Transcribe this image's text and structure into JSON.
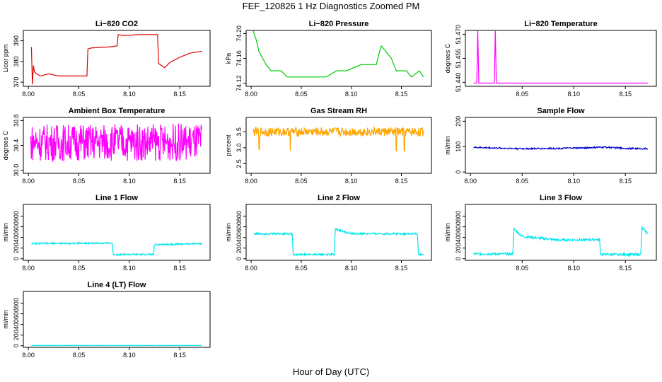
{
  "page_title": "FEF_120826  1 Hz Diagnostics Zoomed PM",
  "x_axis_label": "Hour of Day (UTC)",
  "chart_data": [
    {
      "type": "line",
      "title": "Li−820 CO2",
      "ylabel": "Licor ppm",
      "x_ticks": [
        "8.00",
        "8.05",
        "8.10",
        "8.15"
      ],
      "xlim": [
        7.995,
        8.18
      ],
      "y_ticks": [
        "370",
        "380",
        "390"
      ],
      "ylim": [
        368,
        395
      ],
      "color": "#e00000",
      "series": [
        {
          "x": [
            8.003,
            8.004,
            8.005,
            8.006,
            8.008,
            8.012,
            8.02,
            8.03,
            8.045,
            8.058,
            8.059,
            8.062,
            8.07,
            8.08,
            8.088,
            8.089,
            8.095,
            8.11,
            8.128,
            8.129,
            8.135,
            8.14,
            8.15,
            8.16,
            8.172
          ],
          "y": [
            387,
            369,
            378,
            375,
            374,
            373,
            374,
            373,
            373,
            373,
            386,
            386.5,
            386.8,
            387,
            387.5,
            393,
            392.5,
            393,
            393,
            379,
            377,
            379.5,
            382,
            384,
            385
          ]
        }
      ]
    },
    {
      "type": "line",
      "title": "Li−820 Pressure",
      "ylabel": "kPa",
      "x_ticks": [
        "8.00",
        "8.05",
        "8.10",
        "8.15"
      ],
      "xlim": [
        7.995,
        8.18
      ],
      "y_ticks": [
        "74.12",
        "74.16",
        "74.20"
      ],
      "ylim": [
        74.115,
        74.205
      ],
      "color": "#00cc00",
      "series": [
        {
          "x": [
            8.002,
            8.005,
            8.008,
            8.015,
            8.02,
            8.03,
            8.036,
            8.045,
            8.06,
            8.075,
            8.085,
            8.095,
            8.11,
            8.125,
            8.128,
            8.13,
            8.135,
            8.14,
            8.145,
            8.155,
            8.16,
            8.168,
            8.172
          ],
          "y": [
            74.205,
            74.19,
            74.17,
            74.15,
            74.14,
            74.14,
            74.13,
            74.13,
            74.13,
            74.13,
            74.14,
            74.14,
            74.15,
            74.15,
            74.17,
            74.18,
            74.17,
            74.16,
            74.14,
            74.14,
            74.13,
            74.14,
            74.13
          ]
        }
      ]
    },
    {
      "type": "line",
      "title": "Li−820 Temperature",
      "ylabel": "degrees C",
      "x_ticks": [
        "8.05",
        "8.10",
        "8.15"
      ],
      "xlim": [
        7.995,
        8.18
      ],
      "y_ticks": [
        "51.440",
        "51.455",
        "51.470"
      ],
      "ylim": [
        51.4375,
        51.4725
      ],
      "color": "#ff00ff",
      "series": [
        {
          "x": [
            8.003,
            8.006,
            8.007,
            8.008,
            8.02,
            8.023,
            8.024,
            8.025,
            8.172
          ],
          "y": [
            51.4395,
            51.4395,
            51.4725,
            51.4395,
            51.4395,
            51.4395,
            51.4725,
            51.4395,
            51.4395
          ]
        }
      ]
    },
    {
      "type": "line",
      "title": "Ambient Box Temperature",
      "ylabel": "degrees C",
      "x_ticks": [
        "8.00",
        "8.05",
        "8.10",
        "8.15"
      ],
      "xlim": [
        7.995,
        8.18
      ],
      "y_ticks": [
        "30.0",
        "30.4",
        "30.8"
      ],
      "ylim": [
        29.95,
        30.85
      ],
      "color": "#ff00ff",
      "series": [
        {
          "x": [
            8.002,
            8.172
          ],
          "y": [
            30.45,
            30.45
          ]
        }
      ],
      "noise": {
        "amplitude": 0.3,
        "min": 29.95,
        "max": 30.85
      }
    },
    {
      "type": "line",
      "title": "Gas Stream RH",
      "ylabel": "percent",
      "x_ticks": [
        "8.00",
        "8.05",
        "8.10",
        "8.15"
      ],
      "xlim": [
        7.995,
        8.18
      ],
      "y_ticks": [
        "2.5",
        "3.0",
        "3.5"
      ],
      "ylim": [
        2.2,
        3.95
      ],
      "color": "#ffa500",
      "series": [
        {
          "x": [
            8.002,
            8.172
          ],
          "y": [
            3.5,
            3.5
          ]
        }
      ],
      "noise": {
        "amplitude": 0.14,
        "min": 2.9,
        "max": 3.85
      },
      "spikes": [
        {
          "x": 8.039,
          "y": 2.35
        },
        {
          "x": 8.153,
          "y": 2.25
        },
        {
          "x": 8.008,
          "y": 2.95
        },
        {
          "x": 8.145,
          "y": 2.9
        }
      ]
    },
    {
      "type": "line",
      "title": "Sample Flow",
      "ylabel": "ml/min",
      "x_ticks": [
        "8.00",
        "8.05",
        "8.10",
        "8.15"
      ],
      "xlim": [
        7.995,
        8.18
      ],
      "y_ticks": [
        "0",
        "100",
        "200"
      ],
      "ylim": [
        -5,
        215
      ],
      "color": "#0000cc",
      "series": [
        {
          "x": [
            8.003,
            8.02,
            8.05,
            8.08,
            8.11,
            8.13,
            8.15,
            8.172
          ],
          "y": [
            97,
            95,
            92,
            93,
            95,
            98,
            93,
            92
          ]
        }
      ],
      "noise": {
        "amplitude": 3,
        "min": 80,
        "max": 110
      }
    },
    {
      "type": "line",
      "title": "Line 1 Flow",
      "ylabel": "ml/min",
      "x_ticks": [
        "8.00",
        "8.05",
        "8.10",
        "8.15"
      ],
      "xlim": [
        7.995,
        8.18
      ],
      "y_ticks": [
        "0",
        "200",
        "400",
        "600",
        "800"
      ],
      "ylim": [
        -30,
        1020
      ],
      "color": "#00e5ee",
      "series": [
        {
          "x": [
            8.003,
            8.083,
            8.084,
            8.124,
            8.125,
            8.172
          ],
          "y": [
            285,
            295,
            80,
            80,
            265,
            285
          ]
        }
      ],
      "noise": {
        "amplitude": 15,
        "min": 60,
        "max": 340
      }
    },
    {
      "type": "line",
      "title": "Line 2 Flow",
      "ylabel": "ml/min",
      "x_ticks": [
        "8.00",
        "8.05",
        "8.10",
        "8.15"
      ],
      "xlim": [
        7.995,
        8.18
      ],
      "y_ticks": [
        "0",
        "200",
        "400",
        "600",
        "800"
      ],
      "ylim": [
        -30,
        1020
      ],
      "color": "#00e5ee",
      "series": [
        {
          "x": [
            8.003,
            8.041,
            8.042,
            8.083,
            8.084,
            8.1,
            8.166,
            8.167,
            8.172
          ],
          "y": [
            470,
            470,
            80,
            80,
            560,
            470,
            470,
            80,
            80
          ]
        }
      ],
      "noise": {
        "amplitude": 18,
        "min": 60,
        "max": 580
      }
    },
    {
      "type": "line",
      "title": "Line 3 Flow",
      "ylabel": "ml/min",
      "x_ticks": [
        "8.05",
        "8.10",
        "8.15"
      ],
      "xlim": [
        7.995,
        8.18
      ],
      "y_ticks": [
        "0",
        "200",
        "400",
        "600",
        "800"
      ],
      "ylim": [
        -30,
        1020
      ],
      "color": "#00e5ee",
      "series": [
        {
          "x": [
            8.003,
            8.041,
            8.042,
            8.05,
            8.085,
            8.125,
            8.126,
            8.165,
            8.166,
            8.172
          ],
          "y": [
            90,
            90,
            560,
            420,
            350,
            360,
            80,
            80,
            580,
            470
          ]
        }
      ],
      "noise": {
        "amplitude": 22,
        "min": 60,
        "max": 600
      }
    },
    {
      "type": "line",
      "title": "Line 4 (LT) Flow",
      "ylabel": "ml/min",
      "x_ticks": [
        "8.00",
        "8.05",
        "8.10",
        "8.15"
      ],
      "xlim": [
        7.995,
        8.18
      ],
      "y_ticks": [
        "0",
        "200",
        "400",
        "600",
        "800"
      ],
      "ylim": [
        -30,
        1020
      ],
      "color": "#00e5ee",
      "series": [
        {
          "x": [
            8.003,
            8.172
          ],
          "y": [
            5,
            5
          ]
        }
      ],
      "noise": {
        "amplitude": 3,
        "min": 0,
        "max": 12
      }
    }
  ]
}
